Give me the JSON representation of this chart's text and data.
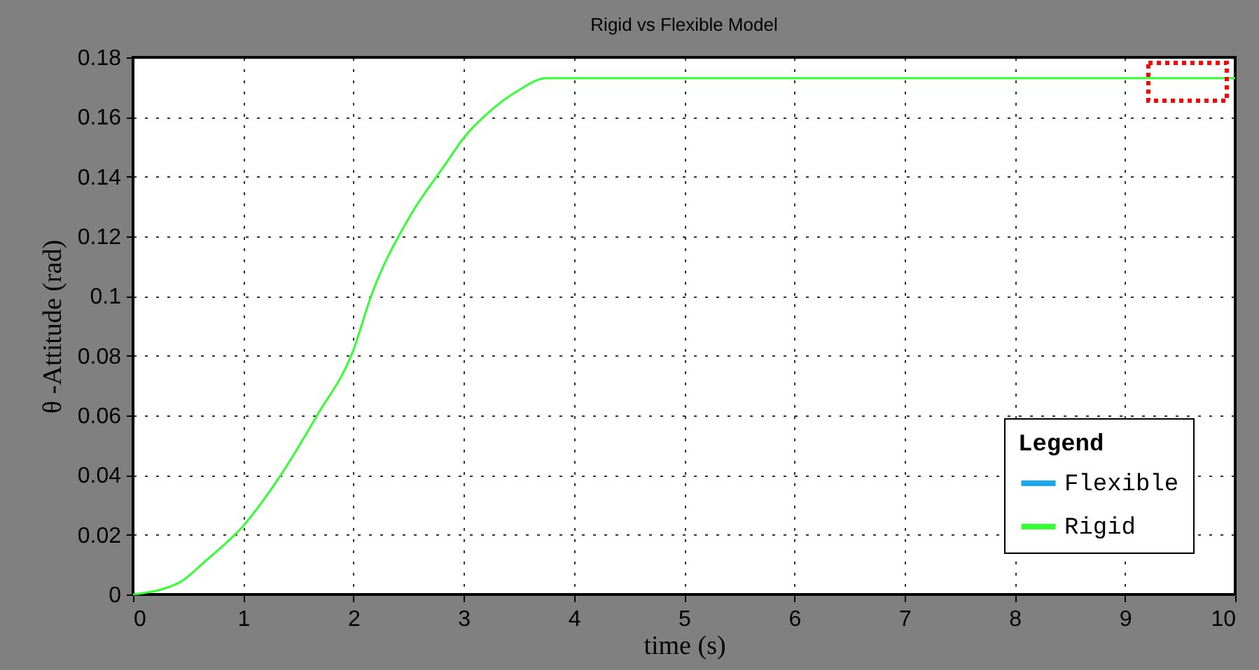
{
  "chart_data": {
    "type": "line",
    "title": "Rigid vs Flexible Model",
    "xlabel": "time (s)",
    "ylabel": "θ -Attitude (rad)",
    "legend_title": "Legend",
    "x": [
      0,
      0.42,
      0.65,
      1,
      1.34,
      1.67,
      2,
      2.16,
      2.5,
      2.83,
      3,
      3.24,
      3.5,
      3.75,
      4,
      5,
      6,
      7,
      8,
      9,
      10
    ],
    "series": [
      {
        "name": "Flexible",
        "color": "#1aa7ec",
        "values": [
          null,
          null,
          null,
          null,
          null,
          null,
          null,
          null,
          null,
          null,
          null,
          null,
          null,
          null,
          null,
          null,
          null,
          null,
          null,
          null,
          null
        ]
      },
      {
        "name": "Rigid",
        "color": "#33ff33",
        "values": [
          0,
          0.004,
          0.011,
          0.023,
          0.04,
          0.06,
          0.082,
          0.1,
          0.126,
          0.144,
          0.153,
          0.162,
          0.169,
          0.173,
          0.173,
          0.173,
          0.173,
          0.173,
          0.173,
          0.173,
          0.173
        ]
      }
    ],
    "xlim": [
      0,
      10
    ],
    "xticks": [
      0,
      1,
      2,
      3,
      4,
      5,
      6,
      7,
      8,
      9,
      10
    ],
    "ylim": [
      0,
      0.18
    ],
    "yticks": [
      0,
      0.02,
      0.04,
      0.06,
      0.08,
      0.1,
      0.12,
      0.14,
      0.16,
      0.18
    ],
    "grid": true,
    "legend": "bottom right",
    "marker": "none",
    "line_style": "solid"
  }
}
